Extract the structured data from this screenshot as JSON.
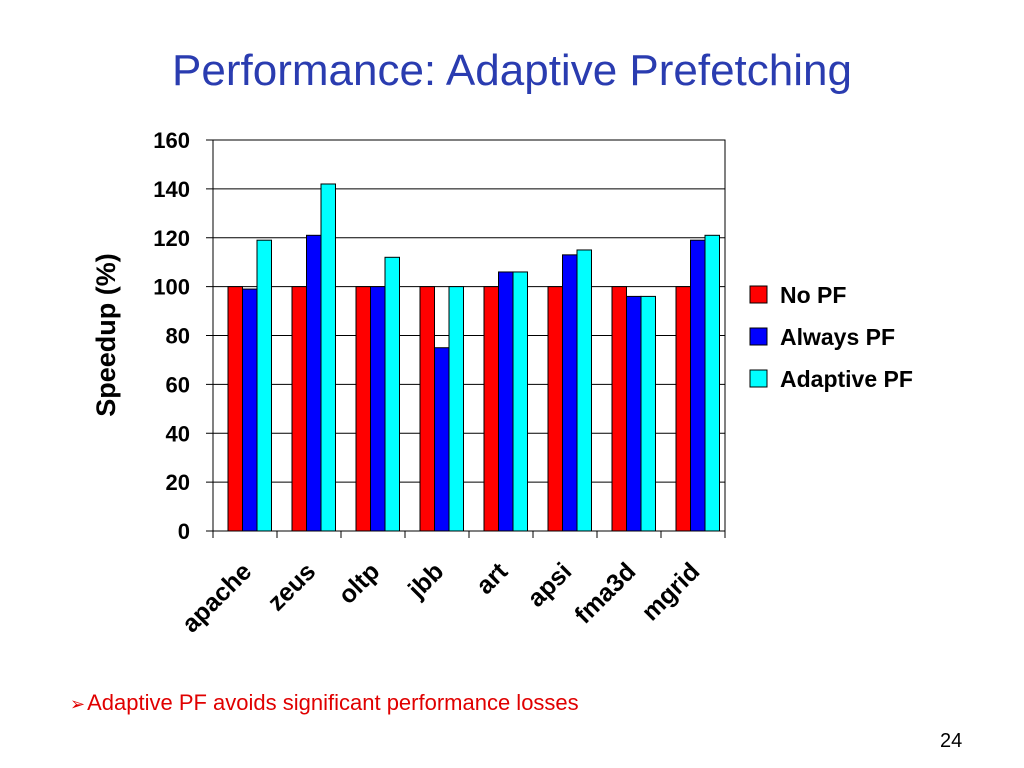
{
  "slide": {
    "title": "Performance: Adaptive Prefetching",
    "bullet_marker": "➢",
    "bullet_text": "Adaptive PF avoids significant performance losses",
    "bullet_color": "#e00000",
    "title_color": "#2a3cb0",
    "page_number": "24"
  },
  "chart_data": {
    "type": "bar",
    "title": "",
    "xlabel": "",
    "ylabel": "Speedup (%)",
    "ylim": [
      0,
      160
    ],
    "yticks": [
      0,
      20,
      40,
      60,
      80,
      100,
      120,
      140,
      160
    ],
    "grid": true,
    "legend_position": "right",
    "categories": [
      "apache",
      "zeus",
      "oltp",
      "jbb",
      "art",
      "apsi",
      "fma3d",
      "mgrid"
    ],
    "series": [
      {
        "name": "No PF",
        "color": "#ff0000",
        "values": [
          100,
          100,
          100,
          100,
          100,
          100,
          100,
          100
        ]
      },
      {
        "name": "Always PF",
        "color": "#0000ff",
        "values": [
          99,
          121,
          100,
          75,
          106,
          113,
          96,
          119
        ]
      },
      {
        "name": "Adaptive PF",
        "color": "#00ffff",
        "values": [
          119,
          142,
          112,
          100,
          106,
          115,
          96,
          121
        ]
      }
    ]
  }
}
